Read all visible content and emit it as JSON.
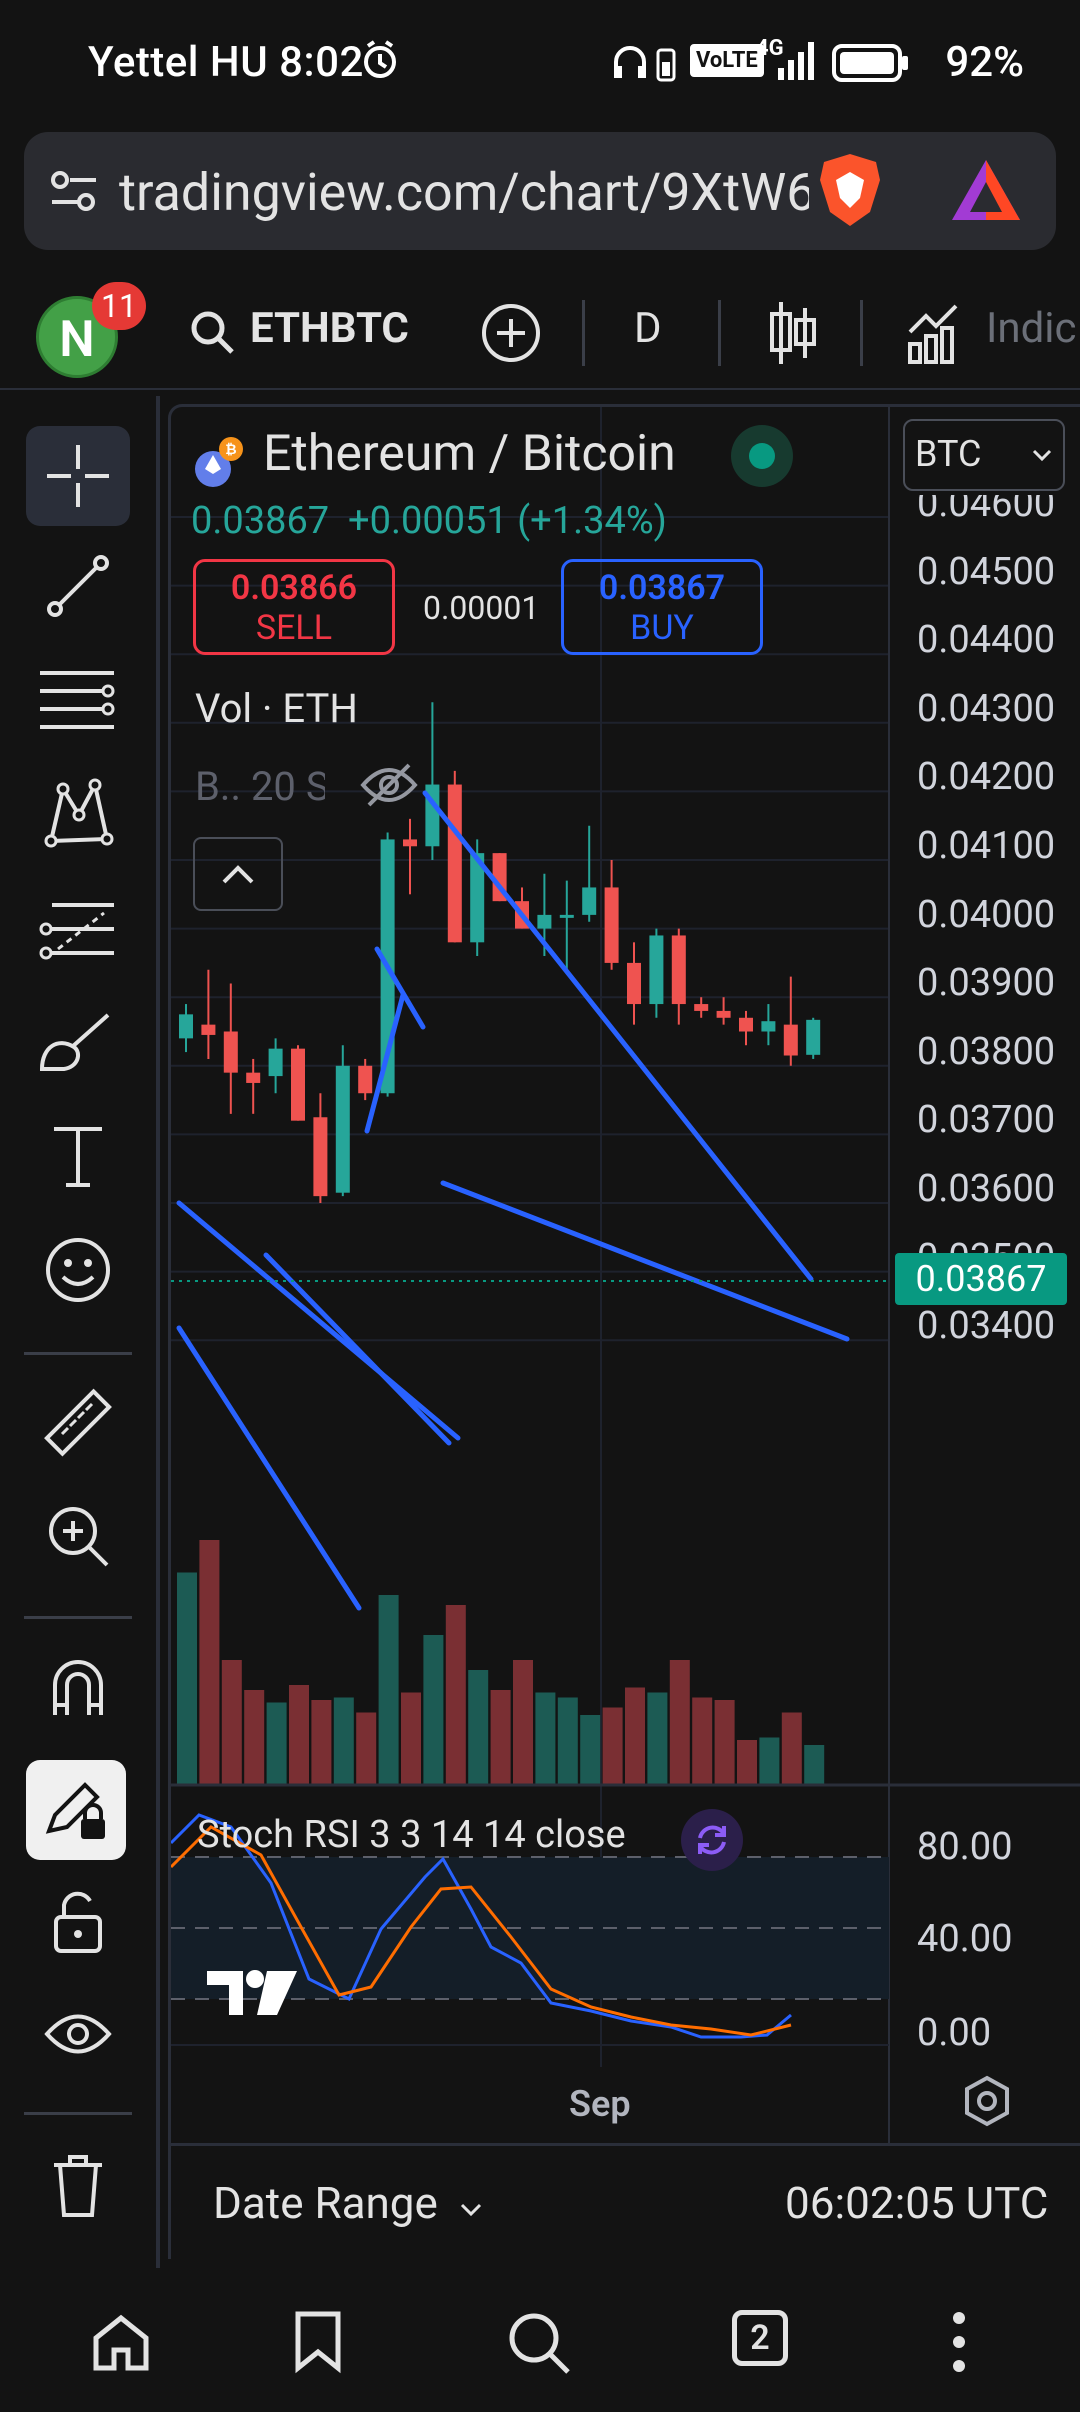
{
  "status_bar": {
    "carrier_time": "Yettel HU 8:02",
    "battery": "92%",
    "network": "4G",
    "volte": "VoLTE"
  },
  "browser": {
    "url": "tradingview.com/chart/9XtW6"
  },
  "toolbar": {
    "avatar_letter": "N",
    "notification_count": "11",
    "symbol": "ETHBTC",
    "interval": "D",
    "indicators_label": "Indic"
  },
  "chart": {
    "pair_title": "Ethereum / Bitcoin",
    "last_price": "0.03867",
    "change": "+0.00051 (+1.34%)",
    "sell_price": "0.03866",
    "sell_label": "SELL",
    "spread": "0.00001",
    "buy_price": "0.03867",
    "buy_label": "BUY",
    "volume_label": "Vol · ETH",
    "indicator_label": "B.. 20 S",
    "currency": "BTC",
    "price_tag": "0.03867",
    "price_axis": [
      "0.04600",
      "0.04500",
      "0.04400",
      "0.04300",
      "0.04200",
      "0.04100",
      "0.04000",
      "0.03900",
      "0.03800",
      "0.03700",
      "0.03600",
      "0.03500",
      "0.03400"
    ],
    "stoch_label": "Stoch RSI 3 3 14 14 close",
    "stoch_axis": [
      "80.00",
      "40.00",
      "0.00"
    ],
    "time_label": "Sep",
    "date_range": "Date Range",
    "clock": "06:02:05 UTC"
  },
  "colors": {
    "up": "#26a69a",
    "down": "#ef5350",
    "trendline": "#2962ff",
    "buy": "#2962ff",
    "sell": "#f23645",
    "price_tag_bg": "#089981"
  },
  "bottom_nav": {
    "tabs_count": "2"
  }
}
